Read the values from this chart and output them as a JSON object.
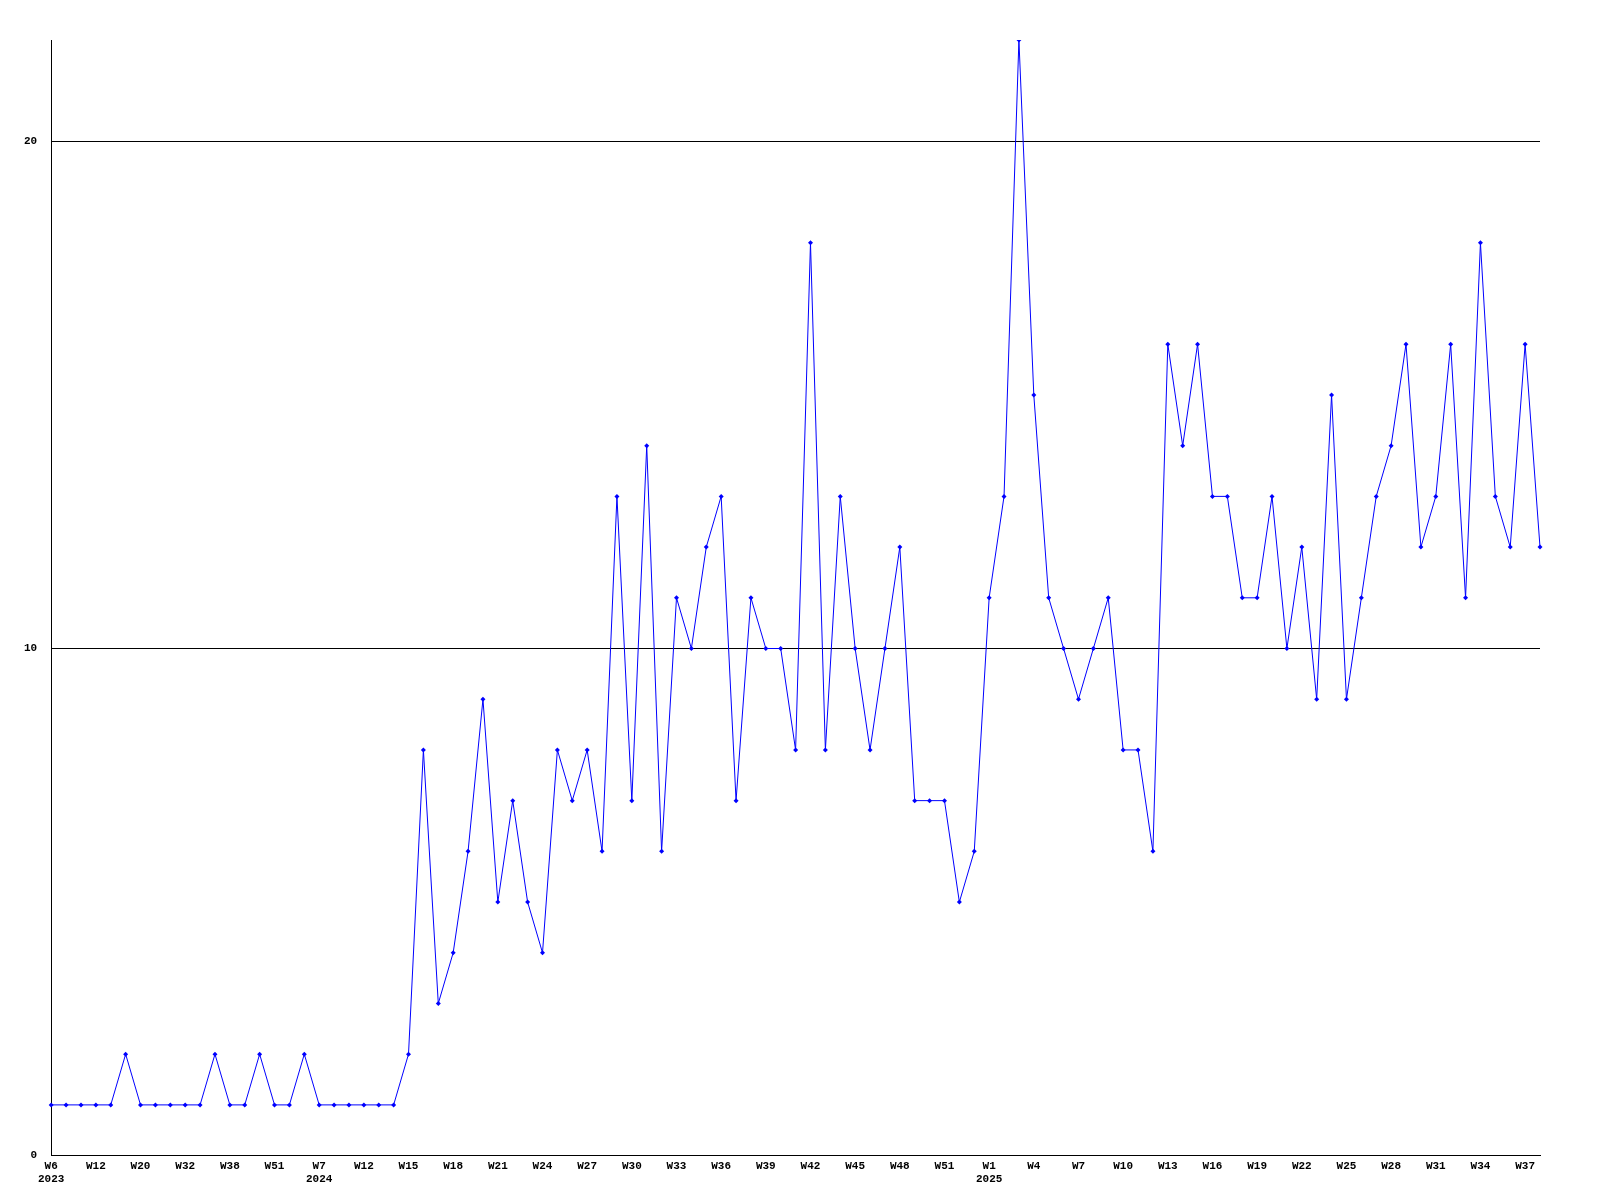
{
  "chart_data": {
    "type": "line",
    "categories": [
      "W6 2023",
      null,
      null,
      "W12",
      null,
      null,
      "W20",
      null,
      null,
      "W32",
      null,
      null,
      "W38",
      null,
      null,
      "W51",
      null,
      null,
      "W7 2024",
      null,
      null,
      "W12",
      null,
      null,
      "W15",
      null,
      null,
      "W18",
      null,
      null,
      "W21",
      null,
      null,
      "W24",
      null,
      null,
      "W27",
      null,
      null,
      "W30",
      null,
      null,
      "W33",
      null,
      null,
      "W36",
      null,
      null,
      "W39",
      null,
      null,
      "W42",
      null,
      null,
      "W45",
      null,
      null,
      "W48",
      null,
      null,
      "W51",
      null,
      null,
      "W1 2025",
      null,
      null,
      "W4",
      null,
      null,
      "W7",
      null,
      null,
      "W10",
      null,
      null,
      "W13",
      null,
      null,
      "W16",
      null,
      null,
      "W19",
      null,
      null,
      "W22",
      null,
      null,
      "W25",
      null,
      null,
      "W28",
      null,
      null,
      "W31",
      null,
      null,
      "W34",
      null,
      null,
      "W37",
      null
    ],
    "series": [
      {
        "color": "#0000ff",
        "values": [
          1,
          1,
          1,
          1,
          1,
          2,
          1,
          1,
          1,
          1,
          1,
          2,
          1,
          1,
          2,
          1,
          1,
          2,
          1,
          1,
          1,
          1,
          1,
          1,
          2,
          8,
          3,
          4,
          6,
          9,
          5,
          7,
          5,
          4,
          8,
          7,
          8,
          6,
          13,
          7,
          14,
          6,
          11,
          10,
          12,
          13,
          7,
          11,
          10,
          10,
          8,
          18,
          8,
          13,
          10,
          8,
          10,
          12,
          7,
          7,
          7,
          5,
          6,
          11,
          13,
          22,
          15,
          11,
          10,
          9,
          10,
          11,
          8,
          8,
          6,
          16,
          14,
          16,
          13,
          13,
          11,
          11,
          13,
          10,
          12,
          9,
          15,
          9,
          11,
          13,
          14,
          16,
          12,
          13,
          16,
          11,
          18,
          13,
          12,
          16,
          12
        ]
      }
    ],
    "ylim": [
      0,
      22
    ],
    "yticks": [
      0,
      10,
      20
    ],
    "grid": "y",
    "legend": false,
    "marker": "diamond",
    "line_style": "solid"
  }
}
